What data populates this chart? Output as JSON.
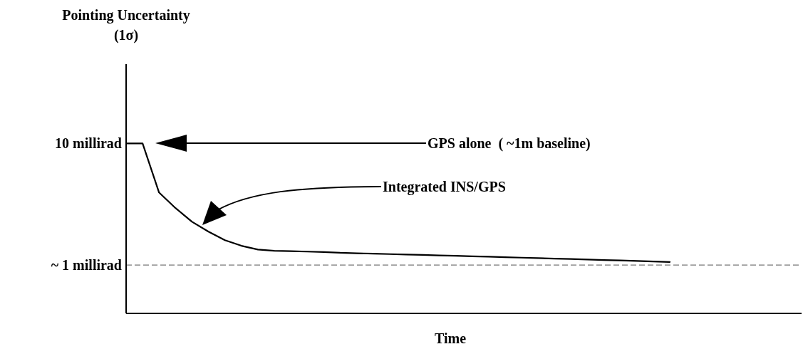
{
  "chart_data": {
    "type": "line",
    "xlabel": "Time",
    "ylabel": "Pointing Uncertainty (1σ)",
    "log": "y",
    "ylim": [
      0.4,
      45
    ],
    "yticks": [
      {
        "value": 1,
        "label": "~ 1 millirad"
      },
      {
        "value": 10,
        "label": "10 millirad"
      }
    ],
    "categories": [
      null,
      null,
      null,
      null,
      null,
      null,
      null,
      null,
      null,
      null,
      null,
      null,
      null,
      null,
      null,
      null,
      null,
      null,
      null,
      null,
      null,
      null,
      null,
      null,
      null,
      null,
      null,
      null,
      null,
      null,
      null,
      null,
      null,
      null,
      null,
      null,
      null,
      null,
      null,
      null,
      null,
      null
    ],
    "tick_labels": "y",
    "grid": false,
    "marker": "none",
    "line_style": "solid",
    "series": [
      {
        "color": "#000000",
        "values": [
          10,
          10,
          3.95,
          2.94,
          2.27,
          1.88,
          1.6,
          1.44,
          1.34,
          1.31,
          1.3,
          1.29,
          1.28,
          1.26,
          1.25,
          1.24,
          1.23,
          1.22,
          1.21,
          1.2,
          1.19,
          1.18,
          1.17,
          1.16,
          1.15,
          1.14,
          1.13,
          1.12,
          1.11,
          1.1,
          1.09,
          1.08,
          1.07,
          1.06,
          null,
          null,
          null,
          null,
          null,
          null,
          null,
          null
        ]
      }
    ],
    "ref_lines": [
      {
        "axis": "y",
        "value": 1,
        "color": "#555555",
        "line_style": "dashed"
      }
    ],
    "annotations": [
      "GPS alone  ( ~1m baseline)",
      "Integrated INS/GPS"
    ]
  }
}
